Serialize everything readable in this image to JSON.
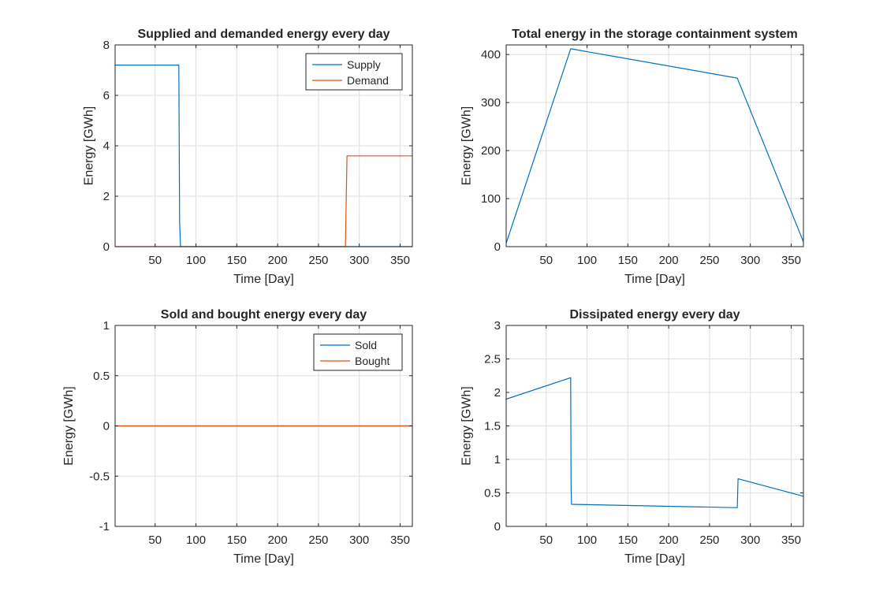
{
  "figure": {
    "background": "#ffffff",
    "axes_color": "#262626",
    "grid_color": "#dfdfdf"
  },
  "chart_data": [
    {
      "type": "line",
      "title": "Supplied and demanded energy every day",
      "xlabel": "Time [Day]",
      "ylabel": "Energy [GWh]",
      "xlim": [
        1,
        365
      ],
      "ylim": [
        0,
        8
      ],
      "xticks": [
        50,
        100,
        150,
        200,
        250,
        300,
        350
      ],
      "yticks": [
        0,
        2,
        4,
        6,
        8
      ],
      "xtick_labels": [
        "50",
        "100",
        "150",
        "200",
        "250",
        "300",
        "350"
      ],
      "ytick_labels": [
        "0",
        "2",
        "4",
        "6",
        "8"
      ],
      "grid": true,
      "legend": "top-right",
      "series": [
        {
          "name": "Supply",
          "color": "#0072BD",
          "x": [
            1,
            79,
            80,
            81,
            365
          ],
          "y": [
            7.2,
            7.2,
            1.0,
            0,
            0
          ]
        },
        {
          "name": "Demand",
          "color": "#D95319",
          "x": [
            1,
            283,
            285,
            365
          ],
          "y": [
            0,
            0,
            3.6,
            3.6
          ]
        }
      ]
    },
    {
      "type": "line",
      "title": "Total energy in the storage containment system",
      "xlabel": "Time [Day]",
      "ylabel": "Energy [GWh]",
      "xlim": [
        1,
        365
      ],
      "ylim": [
        0,
        420
      ],
      "xticks": [
        50,
        100,
        150,
        200,
        250,
        300,
        350
      ],
      "yticks": [
        0,
        100,
        200,
        300,
        400
      ],
      "xtick_labels": [
        "50",
        "100",
        "150",
        "200",
        "250",
        "300",
        "350"
      ],
      "ytick_labels": [
        "0",
        "100",
        "200",
        "300",
        "400"
      ],
      "grid": true,
      "series": [
        {
          "color": "#0072BD",
          "x": [
            1,
            80,
            284,
            365
          ],
          "y": [
            7,
            412,
            351,
            10
          ]
        }
      ]
    },
    {
      "type": "line",
      "title": "Sold and bought energy every day",
      "xlabel": "Time [Day]",
      "ylabel": "Energy [GWh]",
      "xlim": [
        1,
        365
      ],
      "ylim": [
        -1,
        1
      ],
      "xticks": [
        50,
        100,
        150,
        200,
        250,
        300,
        350
      ],
      "yticks": [
        -1,
        -0.5,
        0,
        0.5,
        1
      ],
      "xtick_labels": [
        "50",
        "100",
        "150",
        "200",
        "250",
        "300",
        "350"
      ],
      "ytick_labels": [
        "-1",
        "-0.5",
        "0",
        "0.5",
        "1"
      ],
      "grid": true,
      "legend": "top-right",
      "series": [
        {
          "name": "Sold",
          "color": "#0072BD",
          "x": [
            1,
            365
          ],
          "y": [
            0,
            0
          ]
        },
        {
          "name": "Bought",
          "color": "#D95319",
          "x": [
            1,
            365
          ],
          "y": [
            0,
            0
          ]
        }
      ]
    },
    {
      "type": "line",
      "title": "Dissipated energy every day",
      "xlabel": "Time [Day]",
      "ylabel": "Energy [GWh]",
      "xlim": [
        1,
        365
      ],
      "ylim": [
        0,
        3
      ],
      "xticks": [
        50,
        100,
        150,
        200,
        250,
        300,
        350
      ],
      "yticks": [
        0,
        0.5,
        1,
        1.5,
        2,
        2.5,
        3
      ],
      "xtick_labels": [
        "50",
        "100",
        "150",
        "200",
        "250",
        "300",
        "350"
      ],
      "ytick_labels": [
        "0",
        "0.5",
        "1",
        "1.5",
        "2",
        "2.5",
        "3"
      ],
      "grid": true,
      "series": [
        {
          "color": "#0072BD",
          "x": [
            1,
            80,
            80.5,
            81,
            281,
            284,
            285,
            365
          ],
          "y": [
            1.9,
            2.22,
            0.6,
            0.33,
            0.28,
            0.28,
            0.71,
            0.45
          ]
        }
      ]
    }
  ]
}
